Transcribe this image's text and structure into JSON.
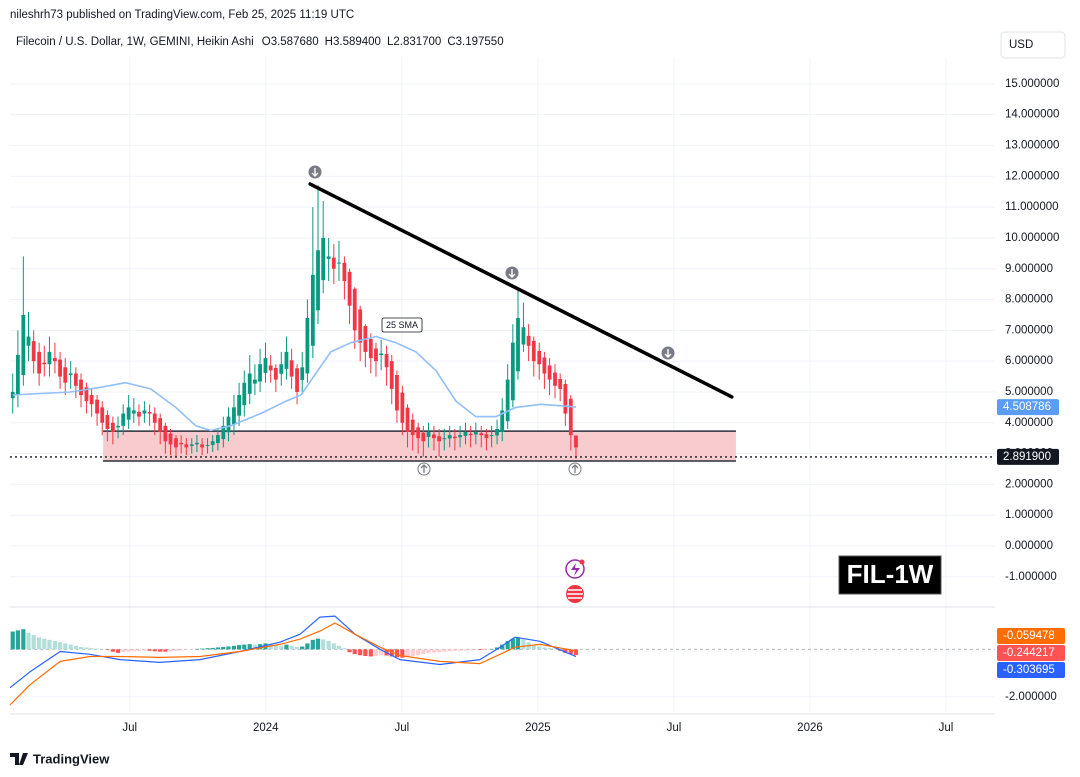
{
  "header": {
    "published": "nileshrh73 published on TradingView.com, Feb 25, 2025 11:19 UTC"
  },
  "footer": {
    "logo": "TradingView"
  },
  "chart_data": [
    {
      "type": "candlestick",
      "title": "Filecoin / U.S. Dollar, 1W, GEMINI, Heikin Ashi",
      "ohlc_labels": [
        "O3.587680",
        "H3.589400",
        "L2.831700",
        "C3.197550"
      ],
      "currency": "USD",
      "watermark": "FIL-1W",
      "up_color": "#089981",
      "down_color": "#f23645",
      "grid": true,
      "xlim": [
        2023.06,
        2026.68
      ],
      "xticks": [
        {
          "value": 2023.5,
          "label": "Jul"
        },
        2024,
        {
          "value": 2024.5,
          "label": "Jul"
        },
        2025,
        {
          "value": 2025.5,
          "label": "Jul"
        },
        2026,
        {
          "value": 2026.5,
          "label": "Jul"
        }
      ],
      "ylim": [
        -1.98,
        15.84
      ],
      "yticks": [
        {
          "value": -1,
          "label": "-1.000000"
        },
        {
          "value": 0,
          "label": "0.000000"
        },
        {
          "value": 1,
          "label": "1.000000"
        },
        {
          "value": 2,
          "label": "2.000000"
        },
        {
          "value": 3,
          "label": "3.000000"
        },
        {
          "value": 4,
          "label": "4.000000"
        },
        {
          "value": 5,
          "label": "5.000000"
        },
        {
          "value": 6,
          "label": "6.000000"
        },
        {
          "value": 7,
          "label": "7.000000"
        },
        {
          "value": 8,
          "label": "8.000000"
        },
        {
          "value": 9,
          "label": "9.000000"
        },
        {
          "value": 10,
          "label": "10.000000"
        },
        {
          "value": 11,
          "label": "11.000000"
        },
        {
          "value": 12,
          "label": "12.000000"
        },
        {
          "value": 13,
          "label": "13.000000"
        },
        {
          "value": 14,
          "label": "14.000000"
        },
        {
          "value": 15,
          "label": "15.000000"
        }
      ],
      "x": [
        2023.07,
        2023.089,
        2023.109,
        2023.128,
        2023.147,
        2023.167,
        2023.186,
        2023.205,
        2023.225,
        2023.244,
        2023.263,
        2023.283,
        2023.302,
        2023.321,
        2023.341,
        2023.36,
        2023.38,
        2023.399,
        2023.418,
        2023.438,
        2023.457,
        2023.476,
        2023.496,
        2023.515,
        2023.534,
        2023.554,
        2023.573,
        2023.592,
        2023.612,
        2023.631,
        2023.65,
        2023.67,
        2023.689,
        2023.708,
        2023.728,
        2023.747,
        2023.766,
        2023.786,
        2023.805,
        2023.824,
        2023.844,
        2023.863,
        2023.883,
        2023.902,
        2023.921,
        2023.941,
        2023.96,
        2023.979,
        2023.999,
        2024.018,
        2024.037,
        2024.057,
        2024.076,
        2024.095,
        2024.115,
        2024.134,
        2024.153,
        2024.173,
        2024.192,
        2024.211,
        2024.231,
        2024.25,
        2024.269,
        2024.289,
        2024.308,
        2024.327,
        2024.347,
        2024.366,
        2024.386,
        2024.405,
        2024.424,
        2024.444,
        2024.463,
        2024.482,
        2024.502,
        2024.521,
        2024.54,
        2024.56,
        2024.579,
        2024.598,
        2024.618,
        2024.637,
        2024.656,
        2024.676,
        2024.695,
        2024.714,
        2024.734,
        2024.753,
        2024.772,
        2024.792,
        2024.811,
        2024.83,
        2024.85,
        2024.869,
        2024.889,
        2024.908,
        2024.927,
        2024.947,
        2024.966,
        2024.985,
        2025.005,
        2025.024,
        2025.043,
        2025.063,
        2025.082,
        2025.101,
        2025.121,
        2025.14
      ],
      "open": [
        4.8,
        4.9,
        5.55,
        6.5,
        6.65,
        6.3,
        5.95,
        5.9,
        6.1,
        6.05,
        5.8,
        5.55,
        5.6,
        5.4,
        5.15,
        4.9,
        4.75,
        4.5,
        4.25,
        4.0,
        3.85,
        3.9,
        4.1,
        4.3,
        4.35,
        4.3,
        4.35,
        4.3,
        4.15,
        3.9,
        3.65,
        3.5,
        3.35,
        3.3,
        3.25,
        3.3,
        3.3,
        3.25,
        3.28,
        3.34,
        3.47,
        3.69,
        3.95,
        4.23,
        4.57,
        4.94,
        5.27,
        5.34,
        5.62,
        5.86,
        5.78,
        5.59,
        5.75,
        6.03,
        5.77,
        5.39,
        5.6,
        6.5,
        7.65,
        8.63,
        9.32,
        9.36,
        9.18,
        9.19,
        8.9,
        8.35,
        7.68,
        7.14,
        6.72,
        6.41,
        6.2,
        6.23,
        6.0,
        5.55,
        4.98,
        4.49,
        4.1,
        3.85,
        3.68,
        3.54,
        3.62,
        3.56,
        3.48,
        3.49,
        3.55,
        3.53,
        3.57,
        3.64,
        3.62,
        3.66,
        3.63,
        3.57,
        3.59,
        3.7,
        4.05,
        4.73,
        5.67,
        6.54,
        6.82,
        6.66,
        6.33,
        6.12,
        5.86,
        5.63,
        5.42,
        5.26,
        4.78,
        3.58768
      ],
      "high": [
        5.6,
        7.0,
        9.4,
        7.6,
        7.0,
        6.6,
        6.5,
        6.8,
        6.6,
        6.3,
        6.1,
        6.0,
        5.8,
        5.6,
        5.3,
        5.1,
        4.9,
        4.7,
        4.4,
        4.2,
        4.2,
        4.6,
        4.9,
        4.8,
        4.6,
        4.7,
        4.6,
        4.5,
        4.3,
        4.0,
        3.8,
        3.6,
        3.6,
        3.5,
        3.5,
        3.6,
        3.5,
        3.5,
        3.6,
        3.8,
        4.2,
        4.5,
        4.9,
        5.3,
        5.7,
        6.2,
        5.9,
        6.4,
        6.6,
        6.2,
        5.9,
        6.3,
        6.8,
        6.4,
        5.9,
        6.3,
        8.0,
        11.0,
        11.7,
        11.2,
        10.0,
        9.8,
        9.9,
        9.4,
        9.0,
        8.4,
        7.8,
        7.2,
        6.9,
        6.6,
        6.7,
        6.5,
        6.2,
        5.7,
        5.2,
        4.6,
        4.3,
        4.0,
        3.9,
        4.0,
        3.9,
        3.8,
        3.8,
        3.9,
        3.8,
        3.9,
        4.0,
        3.9,
        4.0,
        3.9,
        3.8,
        3.9,
        4.1,
        4.8,
        5.9,
        7.2,
        8.3,
        7.9,
        7.2,
        6.8,
        6.6,
        6.3,
        6.1,
        5.9,
        5.6,
        5.4,
        4.9,
        3.5894
      ],
      "low": [
        4.3,
        4.5,
        5.2,
        6.0,
        5.6,
        5.2,
        5.5,
        5.5,
        5.6,
        5.1,
        4.9,
        5.1,
        4.8,
        4.5,
        4.3,
        4.2,
        3.9,
        3.6,
        3.4,
        3.3,
        3.5,
        3.6,
        3.8,
        4.0,
        3.9,
        4.0,
        3.9,
        3.6,
        3.3,
        3.0,
        2.95,
        2.9,
        3.0,
        2.95,
        3.0,
        3.05,
        2.95,
        3.0,
        3.05,
        3.1,
        3.2,
        3.4,
        3.6,
        3.9,
        4.2,
        4.6,
        4.9,
        5.0,
        5.3,
        5.3,
        5.0,
        5.2,
        5.4,
        5.1,
        4.6,
        5.0,
        5.3,
        6.1,
        7.2,
        8.2,
        8.6,
        8.5,
        8.6,
        8.0,
        7.2,
        6.4,
        6.0,
        5.8,
        5.6,
        5.5,
        5.7,
        5.2,
        4.6,
        4.0,
        3.6,
        3.2,
        3.1,
        3.0,
        2.9,
        3.2,
        3.1,
        2.9,
        3.1,
        3.2,
        3.1,
        3.2,
        3.3,
        3.2,
        3.3,
        3.2,
        3.1,
        3.2,
        3.3,
        3.4,
        3.8,
        4.5,
        5.4,
        6.3,
        6.0,
        5.5,
        5.4,
        5.1,
        4.9,
        4.8,
        4.7,
        3.9,
        3.1,
        2.8317
      ],
      "close": [
        5.0,
        6.2,
        7.5,
        6.8,
        6.0,
        5.6,
        5.9,
        6.3,
        6.0,
        5.5,
        5.3,
        5.6,
        5.2,
        4.9,
        4.7,
        4.6,
        4.3,
        4.0,
        3.8,
        3.7,
        3.9,
        4.3,
        4.5,
        4.4,
        4.2,
        4.4,
        4.3,
        4.0,
        3.7,
        3.4,
        3.3,
        3.2,
        3.3,
        3.2,
        3.3,
        3.35,
        3.2,
        3.28,
        3.4,
        3.6,
        3.9,
        4.2,
        4.5,
        4.9,
        5.3,
        5.6,
        5.4,
        5.9,
        6.1,
        5.7,
        5.4,
        5.9,
        6.3,
        5.5,
        5.0,
        5.8,
        7.4,
        8.8,
        9.6,
        10.0,
        9.4,
        9.0,
        9.2,
        8.6,
        7.8,
        7.0,
        6.6,
        6.3,
        6.1,
        6.0,
        6.25,
        5.8,
        5.1,
        4.4,
        4.0,
        3.7,
        3.6,
        3.5,
        3.4,
        3.7,
        3.5,
        3.4,
        3.5,
        3.6,
        3.5,
        3.6,
        3.7,
        3.6,
        3.7,
        3.6,
        3.5,
        3.6,
        3.8,
        4.4,
        5.4,
        6.6,
        7.4,
        7.1,
        6.5,
        6.0,
        5.9,
        5.6,
        5.4,
        5.2,
        5.1,
        4.3,
        3.6,
        3.19755
      ],
      "series": [
        {
          "name": "25 SMA",
          "color": "#90bff9",
          "label_color": "#5b9cf6",
          "x": [
            2023.07,
            2023.173,
            2023.283,
            2023.393,
            2023.485,
            2023.577,
            2023.669,
            2023.743,
            2023.798,
            2023.871,
            2023.982,
            2024.074,
            2024.129,
            2024.184,
            2024.239,
            2024.313,
            2024.405,
            2024.478,
            2024.552,
            2024.625,
            2024.699,
            2024.772,
            2024.846,
            2024.919,
            2025.011,
            2025.085,
            2025.14
          ],
          "values": [
            4.9,
            4.95,
            5.0,
            5.15,
            5.3,
            5.1,
            4.5,
            3.9,
            3.75,
            3.9,
            4.3,
            4.7,
            4.9,
            5.6,
            6.3,
            6.6,
            6.8,
            6.6,
            6.3,
            5.7,
            4.7,
            4.2,
            4.2,
            4.5,
            4.6,
            4.55,
            4.508786
          ]
        }
      ],
      "trendline": {
        "color": "#000000",
        "x": [
          2024.163,
          2025.713
        ],
        "values": [
          11.75,
          4.84
        ]
      },
      "zone": {
        "color": "#f7c6ca",
        "border": "#2a2e39",
        "x": [
          2023.402,
          2025.728
        ],
        "values": [
          3.73,
          2.76
        ]
      },
      "price_line": {
        "value": 2.8919,
        "label": "2.891900"
      }
    },
    {
      "type": "macd",
      "xlim": [
        2023.06,
        2026.68
      ],
      "ylim": [
        -2.64,
        1.7
      ],
      "yticks": [
        {
          "value": -2,
          "label": "-2.000000"
        }
      ],
      "x": [
        2023.06,
        2023.134,
        2023.244,
        2023.354,
        2023.464,
        2023.611,
        2023.758,
        2023.905,
        2024.052,
        2024.126,
        2024.199,
        2024.254,
        2024.328,
        2024.42,
        2024.493,
        2024.64,
        2024.787,
        2024.861,
        2024.916,
        2025.008,
        2025.14
      ],
      "series": [
        {
          "color": "#2962ff",
          "values": [
            -1.62,
            -0.94,
            -0.09,
            -0.21,
            -0.43,
            -0.55,
            -0.43,
            -0.09,
            0.3,
            0.64,
            1.36,
            1.4,
            0.64,
            0,
            -0.43,
            -0.64,
            -0.43,
            0.09,
            0.51,
            0.34,
            -0.303695
          ]
        },
        {
          "color": "#ff6d00",
          "values": [
            -2.34,
            -1.49,
            -0.51,
            -0.3,
            -0.3,
            -0.34,
            -0.3,
            -0.09,
            0.21,
            0.43,
            0.77,
            1.11,
            0.64,
            0.09,
            -0.26,
            -0.51,
            -0.6,
            -0.21,
            0.09,
            0.21,
            -0.059478
          ]
        }
      ],
      "histogram": {
        "colors": [
          "#26a69a",
          "#b2dfdb",
          "#ff5252",
          "#ffcdd2"
        ],
        "values": [
          0.75,
          0.8,
          0.85,
          0.7,
          0.6,
          0.5,
          0.45,
          0.4,
          0.35,
          0.3,
          0.25,
          0.2,
          0.15,
          0.1,
          0.08,
          0.05,
          0.03,
          0.02,
          -0.02,
          -0.1,
          -0.15,
          -0.12,
          -0.1,
          -0.08,
          -0.06,
          -0.05,
          -0.06,
          -0.08,
          -0.1,
          -0.1,
          -0.09,
          -0.07,
          -0.05,
          -0.03,
          -0.02,
          0.02,
          0.03,
          0.05,
          0.06,
          0.08,
          0.1,
          0.12,
          0.15,
          0.18,
          0.2,
          0.22,
          0.2,
          0.22,
          0.25,
          0.22,
          0.18,
          0.15,
          0.2,
          0.15,
          0.1,
          0.12,
          0.25,
          0.4,
          0.45,
          0.42,
          0.35,
          0.25,
          0.15,
          0.05,
          -0.12,
          -0.2,
          -0.25,
          -0.28,
          -0.3,
          -0.28,
          -0.25,
          -0.26,
          -0.3,
          -0.33,
          -0.35,
          -0.32,
          -0.28,
          -0.25,
          -0.2,
          -0.16,
          -0.14,
          -0.12,
          -0.1,
          -0.08,
          -0.07,
          -0.06,
          -0.05,
          -0.04,
          -0.03,
          -0.03,
          -0.02,
          0.02,
          0.08,
          0.2,
          0.35,
          0.45,
          0.5,
          0.42,
          0.3,
          0.2,
          0.12,
          0.08,
          0.05,
          0.02,
          -0.06,
          -0.15,
          -0.2,
          -0.244217
        ]
      }
    }
  ]
}
